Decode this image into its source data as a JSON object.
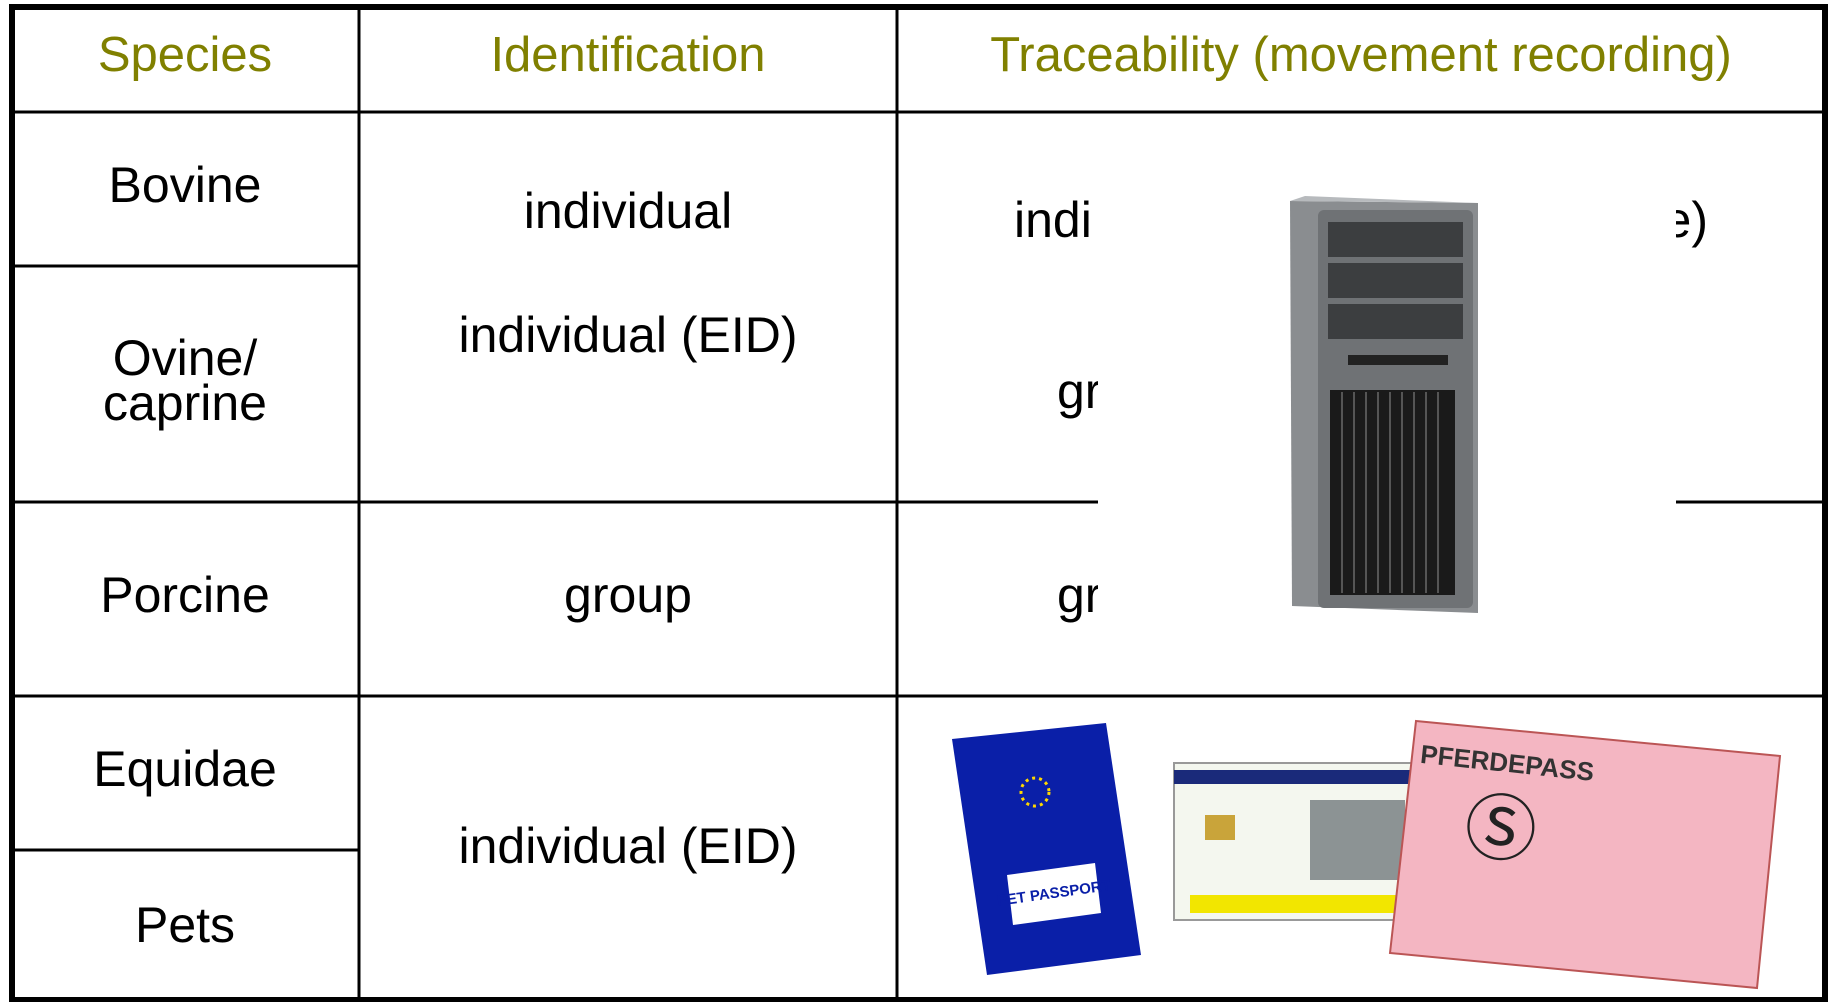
{
  "table": {
    "headers": [
      "Species",
      "Identification",
      "Traceability (movement recording)"
    ],
    "species": [
      {
        "lines": [
          "Bovine"
        ]
      },
      {
        "lines": [
          "Ovine/",
          "caprine"
        ]
      },
      {
        "lines": [
          "Porcine"
        ]
      },
      {
        "lines": [
          "Equidae"
        ]
      },
      {
        "lines": [
          "Pets"
        ]
      }
    ],
    "identification": [
      "individual",
      "individual (EID)",
      "group",
      "individual (EID)"
    ],
    "traceability": [
      "indi",
      "e)",
      "gr",
      "gr"
    ],
    "documents": [
      "PET PASSPORT",
      "PFERDEPASS"
    ]
  }
}
